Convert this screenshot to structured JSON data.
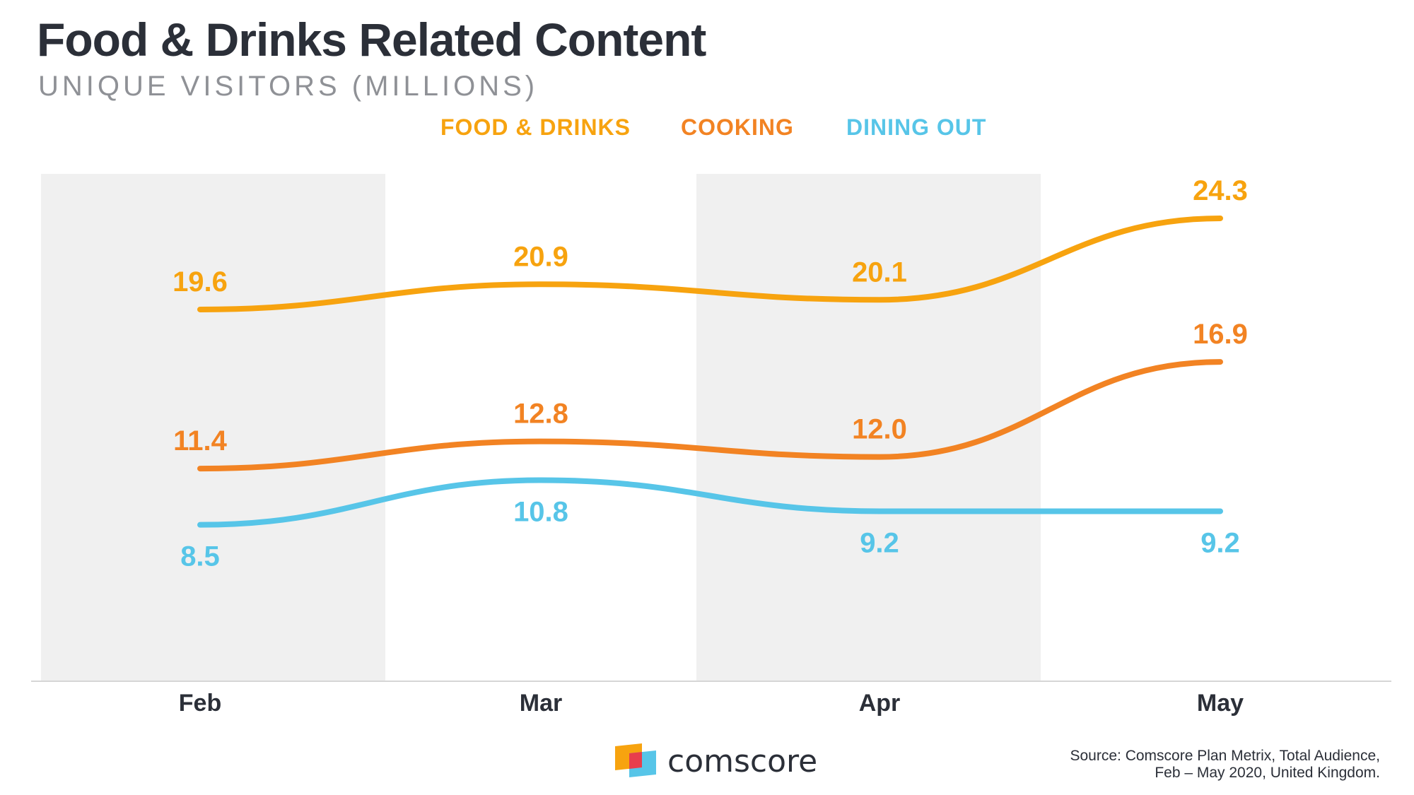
{
  "header": {
    "title": "Food & Drinks Related Content",
    "subtitle": "UNIQUE VISITORS (MILLIONS)"
  },
  "chart_data": {
    "type": "line",
    "title": "Food & Drinks Related Content",
    "subtitle": "UNIQUE VISITORS (MILLIONS)",
    "categories": [
      "Feb",
      "Mar",
      "Apr",
      "May"
    ],
    "series": [
      {
        "name": "FOOD & DRINKS",
        "color": "#F7A30F",
        "values": [
          19.6,
          20.9,
          20.1,
          24.3
        ],
        "labels": [
          "19.6",
          "20.9",
          "20.1",
          "24.3"
        ],
        "label_position": "above"
      },
      {
        "name": "COOKING",
        "color": "#F28323",
        "values": [
          11.4,
          12.8,
          12.0,
          16.9
        ],
        "labels": [
          "11.4",
          "12.8",
          "12.0",
          "16.9"
        ],
        "label_position": "above"
      },
      {
        "name": "DINING OUT",
        "color": "#57C5E8",
        "values": [
          8.5,
          10.8,
          9.2,
          9.2
        ],
        "labels": [
          "8.5",
          "10.8",
          "9.2",
          "9.2"
        ],
        "label_position": "below"
      }
    ],
    "legend_position": "top-center",
    "grid": false,
    "alternating_bands": true,
    "band_color": "#F0F0F0",
    "axis_color": "#D6D6D6",
    "smooth_lines": true
  },
  "footer": {
    "brand": "comscore",
    "source_line1": "Source: Comscore Plan Metrix, Total Audience,",
    "source_line2": "Feb – May 2020, United Kingdom."
  }
}
